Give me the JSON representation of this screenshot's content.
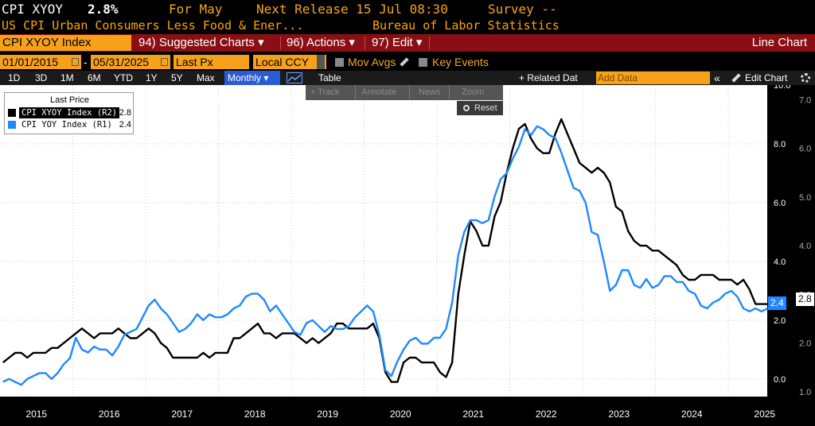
{
  "header": {
    "ticker": "CPI XYOY",
    "value": "2.8%",
    "for_label": "For May",
    "next_release": "Next Release 15 Jul 08:30",
    "survey": "Survey --",
    "description": "US CPI Urban Consumers Less Food & Ener...",
    "source": "Bureau of Labor Statistics"
  },
  "menu": {
    "security": "CPI XYOY Index",
    "suggested": "94) Suggested Charts ▾",
    "actions": "96) Actions ▾",
    "edit": "97) Edit ▾",
    "title": "Line Chart"
  },
  "controls": {
    "start_date": "01/01/2015",
    "end_date": "05/31/2025",
    "dash": "-",
    "field": "Last Px",
    "currency": "Local CCY",
    "mov_avgs": "Mov Avgs",
    "key_events": "Key Events"
  },
  "tabs": {
    "periods": [
      "1D",
      "3D",
      "1M",
      "6M",
      "YTD",
      "1Y",
      "5Y",
      "Max"
    ],
    "frequency": "Monthly ▾",
    "table": "Table",
    "related": "+ Related Dat",
    "add_data": "Add Data",
    "collapse": "«",
    "edit_chart": "Edit Chart"
  },
  "toolbar": {
    "track": "+ Track",
    "annotate": "Annotate",
    "news": "News",
    "zoom": "Zoom",
    "reset": "Reset"
  },
  "legend": {
    "header": "Last Price",
    "items": [
      {
        "name": "CPI XYOY Index  (R2)",
        "value": "2.8",
        "color": "#000000"
      },
      {
        "name": "CPI YOY Index  (R1)",
        "value": "2.4",
        "color": "#1e88ff"
      }
    ]
  },
  "tags": {
    "r1": "2.4",
    "r2": "2.8"
  },
  "chart_data": {
    "type": "line",
    "x_start": "2015-01",
    "x_end": "2025-05",
    "x_tick_labels": [
      "2015",
      "2016",
      "2017",
      "2018",
      "2019",
      "2020",
      "2021",
      "2022",
      "2023",
      "2024",
      "2025"
    ],
    "r1_ticks": [
      "0.0",
      "2.0",
      "4.0",
      "6.0",
      "8.0",
      "10.0"
    ],
    "r2_ticks": [
      "1.0",
      "2.0",
      "3.0",
      "4.0",
      "5.0",
      "6.0",
      "7.0"
    ],
    "r1_range": [
      -0.6,
      10.0
    ],
    "r2_range": [
      0.9,
      7.3
    ],
    "series": [
      {
        "name": "CPI XYOY Index  (R2)",
        "axis": "R2",
        "color": "#000000",
        "values": [
          1.6,
          1.7,
          1.8,
          1.8,
          1.7,
          1.8,
          1.8,
          1.8,
          1.9,
          1.9,
          2.0,
          2.1,
          2.2,
          2.3,
          2.2,
          2.1,
          2.2,
          2.2,
          2.2,
          2.3,
          2.2,
          2.1,
          2.1,
          2.2,
          2.3,
          2.2,
          2.0,
          1.9,
          1.7,
          1.7,
          1.7,
          1.7,
          1.7,
          1.8,
          1.7,
          1.8,
          1.8,
          1.8,
          2.1,
          2.1,
          2.2,
          2.3,
          2.4,
          2.2,
          2.2,
          2.1,
          2.2,
          2.2,
          2.2,
          2.1,
          2.0,
          2.1,
          2.0,
          2.1,
          2.2,
          2.4,
          2.4,
          2.3,
          2.3,
          2.3,
          2.3,
          2.4,
          2.1,
          1.4,
          1.2,
          1.2,
          1.6,
          1.7,
          1.7,
          1.6,
          1.6,
          1.6,
          1.4,
          1.3,
          1.6,
          3.0,
          3.8,
          4.5,
          4.3,
          4.0,
          4.0,
          4.6,
          4.9,
          5.5,
          6.0,
          6.4,
          6.5,
          6.2,
          6.0,
          5.9,
          5.9,
          6.3,
          6.6,
          6.3,
          6.0,
          5.7,
          5.6,
          5.5,
          5.6,
          5.5,
          5.3,
          4.8,
          4.7,
          4.3,
          4.1,
          4.0,
          4.0,
          3.9,
          3.9,
          3.8,
          3.7,
          3.6,
          3.4,
          3.3,
          3.3,
          3.4,
          3.4,
          3.4,
          3.3,
          3.3,
          3.3,
          3.2,
          3.3,
          3.1,
          2.8,
          2.8,
          2.8,
          2.8
        ]
      },
      {
        "name": "CPI YOY Index  (R1)",
        "axis": "R1",
        "color": "#1e88ff",
        "values": [
          -0.1,
          0.0,
          -0.1,
          -0.2,
          0.0,
          0.1,
          0.2,
          0.2,
          0.0,
          0.2,
          0.5,
          0.7,
          1.4,
          1.0,
          0.9,
          1.1,
          1.0,
          1.0,
          0.8,
          1.1,
          1.5,
          1.6,
          1.7,
          2.1,
          2.5,
          2.7,
          2.4,
          2.2,
          1.9,
          1.6,
          1.7,
          1.9,
          2.2,
          2.0,
          2.2,
          2.1,
          2.1,
          2.2,
          2.4,
          2.5,
          2.8,
          2.9,
          2.9,
          2.7,
          2.3,
          2.5,
          2.2,
          1.9,
          1.6,
          1.5,
          1.9,
          2.0,
          1.8,
          1.6,
          1.8,
          1.7,
          1.7,
          1.8,
          2.1,
          2.3,
          2.5,
          2.3,
          1.5,
          0.3,
          0.1,
          0.6,
          1.0,
          1.3,
          1.4,
          1.2,
          1.2,
          1.4,
          1.4,
          1.7,
          2.6,
          4.2,
          5.0,
          5.4,
          5.4,
          5.3,
          5.4,
          6.2,
          6.8,
          7.0,
          7.5,
          7.9,
          8.5,
          8.3,
          8.6,
          8.5,
          8.3,
          8.2,
          7.7,
          7.1,
          6.5,
          6.4,
          6.0,
          5.0,
          4.9,
          4.0,
          3.0,
          3.2,
          3.7,
          3.7,
          3.2,
          3.1,
          3.4,
          3.1,
          3.2,
          3.5,
          3.5,
          3.3,
          3.3,
          3.0,
          2.9,
          2.5,
          2.4,
          2.6,
          2.7,
          2.9,
          3.0,
          2.8,
          2.4,
          2.3,
          2.4,
          2.3,
          2.4
        ]
      }
    ]
  }
}
